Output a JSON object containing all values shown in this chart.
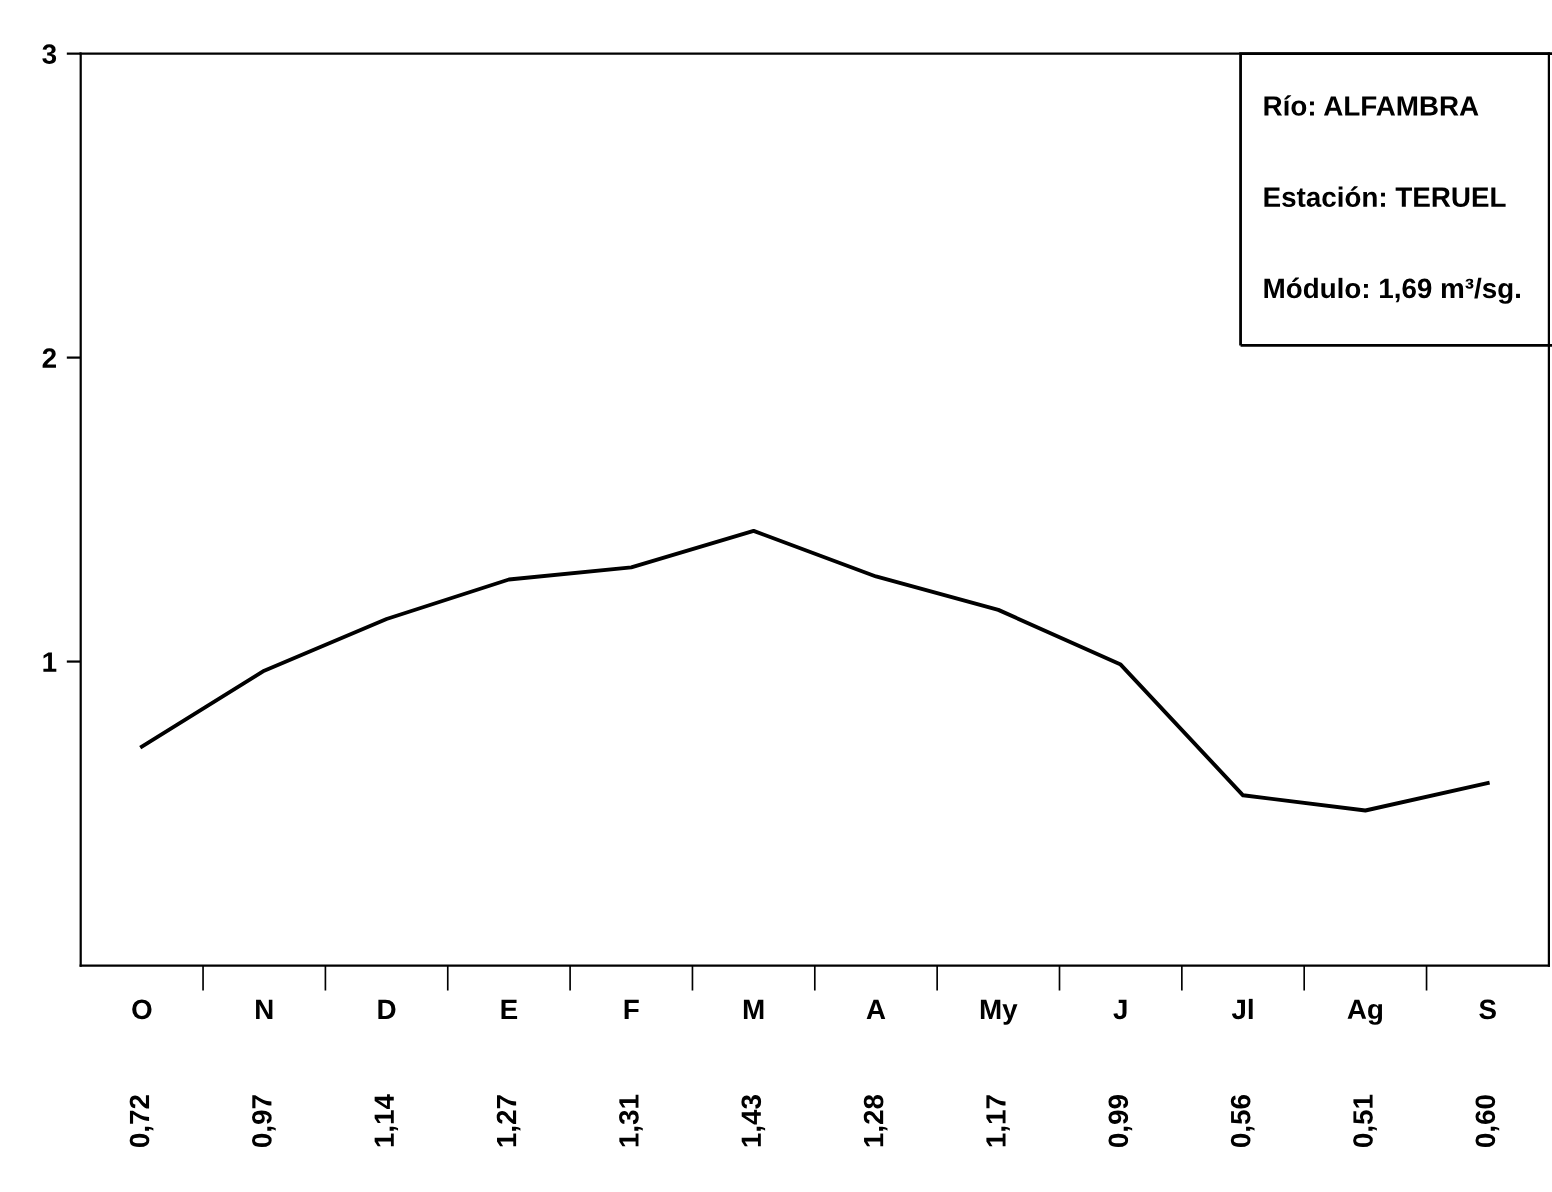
{
  "chart_data": {
    "type": "line",
    "categories": [
      "O",
      "N",
      "D",
      "E",
      "F",
      "M",
      "A",
      "My",
      "J",
      "Jl",
      "Ag",
      "S"
    ],
    "series": [
      {
        "color": "#000000",
        "values": [
          0.72,
          0.97,
          1.14,
          1.27,
          1.31,
          1.43,
          1.28,
          1.17,
          0.99,
          0.56,
          0.51,
          0.6
        ],
        "value_labels": [
          "0,72",
          "0,97",
          "1,14",
          "1,27",
          "1,31",
          "1,43",
          "1,28",
          "1,17",
          "0,99",
          "0,56",
          "0,51",
          "0,60"
        ]
      }
    ],
    "ylim": [
      0,
      3
    ],
    "yticks": [
      1,
      2,
      3
    ],
    "annotations": [
      "Río: ALFAMBRA",
      "Estación: TERUEL",
      "Módulo: 1,69 m³/sg."
    ],
    "grid": false,
    "legend": false,
    "marker": "none",
    "line_style": "solid"
  }
}
